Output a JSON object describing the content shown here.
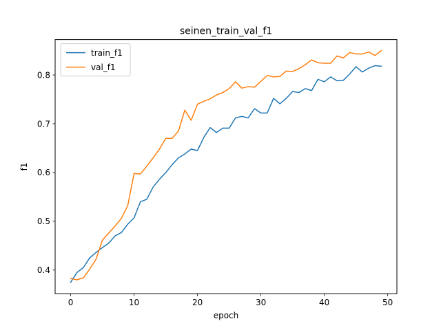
{
  "chart_data": {
    "type": "line",
    "title": "seinen_train_val_f1",
    "xlabel": "epoch",
    "ylabel": "f1",
    "xlim": [
      -2.45,
      51.45
    ],
    "ylim": [
      0.3515,
      0.8725
    ],
    "xticks": [
      0,
      10,
      20,
      30,
      40,
      50
    ],
    "yticks": [
      0.4,
      0.5,
      0.6,
      0.7,
      0.8
    ],
    "legend_position": "top-left",
    "grid": false,
    "x": [
      0,
      1,
      2,
      3,
      4,
      5,
      6,
      7,
      8,
      9,
      10,
      11,
      12,
      13,
      14,
      15,
      16,
      17,
      18,
      19,
      20,
      21,
      22,
      23,
      24,
      25,
      26,
      27,
      28,
      29,
      30,
      31,
      32,
      33,
      34,
      35,
      36,
      37,
      38,
      39,
      40,
      41,
      42,
      43,
      44,
      45,
      46,
      47,
      48,
      49
    ],
    "series": [
      {
        "name": "train_f1",
        "color": "#1f77b4",
        "values": [
          0.375,
          0.395,
          0.405,
          0.425,
          0.436,
          0.446,
          0.455,
          0.47,
          0.477,
          0.494,
          0.507,
          0.54,
          0.545,
          0.57,
          0.586,
          0.6,
          0.616,
          0.63,
          0.638,
          0.648,
          0.645,
          0.672,
          0.692,
          0.682,
          0.691,
          0.691,
          0.712,
          0.715,
          0.712,
          0.731,
          0.722,
          0.722,
          0.752,
          0.741,
          0.752,
          0.766,
          0.764,
          0.772,
          0.768,
          0.791,
          0.786,
          0.796,
          0.788,
          0.789,
          0.802,
          0.817,
          0.806,
          0.814,
          0.819,
          0.818
        ]
      },
      {
        "name": "val_f1",
        "color": "#ff7f0e",
        "values": [
          0.383,
          0.38,
          0.384,
          0.402,
          0.422,
          0.461,
          0.476,
          0.49,
          0.506,
          0.532,
          0.598,
          0.597,
          0.613,
          0.63,
          0.648,
          0.67,
          0.67,
          0.685,
          0.728,
          0.707,
          0.74,
          0.746,
          0.751,
          0.759,
          0.764,
          0.772,
          0.786,
          0.773,
          0.776,
          0.775,
          0.787,
          0.799,
          0.796,
          0.797,
          0.808,
          0.807,
          0.813,
          0.821,
          0.831,
          0.825,
          0.824,
          0.824,
          0.839,
          0.835,
          0.846,
          0.843,
          0.843,
          0.847,
          0.84,
          0.85
        ]
      }
    ]
  }
}
